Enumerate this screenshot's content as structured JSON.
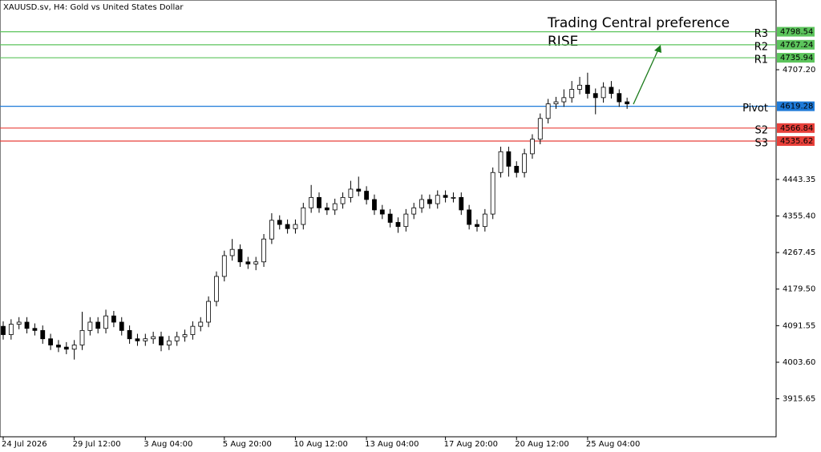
{
  "chart_data": {
    "type": "candlestick",
    "title": "XAUUSD.sv, H4:  Gold vs United States Dollar",
    "annotations": [
      "Trading Central preference",
      "RISE"
    ],
    "annotation_color": "#4cbb4c",
    "categories": [
      "24 Jul 2026",
      null,
      null,
      null,
      null,
      null,
      null,
      null,
      null,
      "29 Jul 12:00",
      null,
      null,
      null,
      null,
      null,
      null,
      null,
      null,
      "3 Aug 04:00",
      null,
      null,
      null,
      null,
      null,
      null,
      null,
      null,
      null,
      "5 Aug 20:00",
      null,
      null,
      null,
      null,
      null,
      null,
      null,
      null,
      "10 Aug 12:00",
      null,
      null,
      null,
      null,
      null,
      null,
      null,
      null,
      "13 Aug 04:00",
      null,
      null,
      null,
      null,
      null,
      null,
      null,
      null,
      null,
      "17 Aug 20:00",
      null,
      null,
      null,
      null,
      null,
      null,
      null,
      null,
      "20 Aug 12:00",
      null,
      null,
      null,
      null,
      null,
      null,
      null,
      null,
      "25 Aug 04:00",
      null,
      null,
      null,
      null,
      null
    ],
    "open": [
      4090,
      4070,
      4095,
      4100,
      4085,
      4080,
      4060,
      4045,
      4040,
      4035,
      4045,
      4080,
      4100,
      4085,
      4115,
      4100,
      4080,
      4060,
      4055,
      4060,
      4065,
      4045,
      4055,
      4065,
      4070,
      4090,
      4100,
      4150,
      4210,
      4260,
      4275,
      4245,
      4240,
      4245,
      4300,
      4345,
      4335,
      4325,
      4335,
      4375,
      4400,
      4375,
      4370,
      4385,
      4400,
      4420,
      4415,
      4395,
      4370,
      4360,
      4340,
      4330,
      4360,
      4375,
      4395,
      4385,
      4405,
      4400,
      4400,
      4370,
      4335,
      4330,
      4360,
      4460,
      4510,
      4475,
      4460,
      4505,
      4540,
      4590,
      4625,
      4630,
      4640,
      4660,
      4670,
      4650,
      4640,
      4665,
      4650,
      4630
    ],
    "high": [
      4102,
      4107,
      4112,
      4112,
      4097,
      4092,
      4072,
      4057,
      4052,
      4057,
      4125,
      4112,
      4112,
      4130,
      4127,
      4112,
      4092,
      4072,
      4072,
      4077,
      4077,
      4067,
      4077,
      4082,
      4102,
      4112,
      4162,
      4222,
      4272,
      4300,
      4287,
      4257,
      4257,
      4312,
      4362,
      4357,
      4347,
      4347,
      4387,
      4430,
      4412,
      4387,
      4397,
      4412,
      4440,
      4450,
      4427,
      4407,
      4382,
      4372,
      4352,
      4372,
      4387,
      4407,
      4407,
      4417,
      4417,
      4412,
      4412,
      4382,
      4347,
      4372,
      4472,
      4522,
      4522,
      4487,
      4517,
      4552,
      4602,
      4637,
      4642,
      4660,
      4680,
      4690,
      4700,
      4662,
      4677,
      4680,
      4660,
      4640
    ],
    "low": [
      4058,
      4058,
      4083,
      4073,
      4068,
      4048,
      4033,
      4028,
      4023,
      4010,
      4033,
      4068,
      4073,
      4073,
      4088,
      4068,
      4048,
      4043,
      4043,
      4048,
      4030,
      4033,
      4043,
      4053,
      4058,
      4078,
      4088,
      4138,
      4198,
      4248,
      4233,
      4228,
      4225,
      4233,
      4288,
      4323,
      4313,
      4313,
      4323,
      4363,
      4363,
      4358,
      4358,
      4373,
      4388,
      4403,
      4383,
      4358,
      4348,
      4328,
      4315,
      4318,
      4348,
      4363,
      4373,
      4373,
      4388,
      4388,
      4358,
      4323,
      4318,
      4318,
      4348,
      4448,
      4450,
      4448,
      4448,
      4493,
      4528,
      4578,
      4613,
      4618,
      4628,
      4648,
      4638,
      4600,
      4628,
      4638,
      4618,
      4613
    ],
    "close": [
      4070,
      4095,
      4100,
      4085,
      4080,
      4060,
      4045,
      4040,
      4035,
      4045,
      4080,
      4100,
      4085,
      4115,
      4100,
      4080,
      4060,
      4055,
      4060,
      4065,
      4045,
      4055,
      4065,
      4070,
      4090,
      4100,
      4150,
      4210,
      4260,
      4275,
      4245,
      4240,
      4245,
      4300,
      4345,
      4335,
      4325,
      4335,
      4375,
      4400,
      4375,
      4370,
      4385,
      4400,
      4420,
      4415,
      4395,
      4370,
      4360,
      4340,
      4330,
      4360,
      4375,
      4395,
      4385,
      4405,
      4400,
      4400,
      4370,
      4335,
      4330,
      4360,
      4460,
      4510,
      4475,
      4460,
      4505,
      4540,
      4590,
      4625,
      4630,
      4640,
      4660,
      4670,
      4650,
      4640,
      4665,
      4650,
      4630,
      4625
    ],
    "levels": [
      {
        "name": "R3",
        "value": 4798.54,
        "color": "#5cc45c"
      },
      {
        "name": "R2",
        "value": 4767.24,
        "color": "#5cc45c"
      },
      {
        "name": "R1",
        "value": 4735.94,
        "color": "#5cc45c"
      },
      {
        "name": "Pivot",
        "value": 4619.28,
        "color": "#1e7ad8"
      },
      {
        "name": "S2",
        "value": 4566.84,
        "color": "#e8403a"
      },
      {
        "name": "S3",
        "value": 4535.62,
        "color": "#e8403a"
      }
    ],
    "ylim": [
      3824.3,
      4874.9
    ],
    "yticks": [
      3915.65,
      {
        "value": 4003.6,
        "label": "4003.60"
      },
      4091.55,
      {
        "value": 4179.5,
        "label": "4179.50"
      },
      4267.45,
      {
        "value": 4355.4,
        "label": "4355.40"
      },
      4443.35,
      {
        "value": 4707.2,
        "label": "4707.20"
      }
    ]
  }
}
